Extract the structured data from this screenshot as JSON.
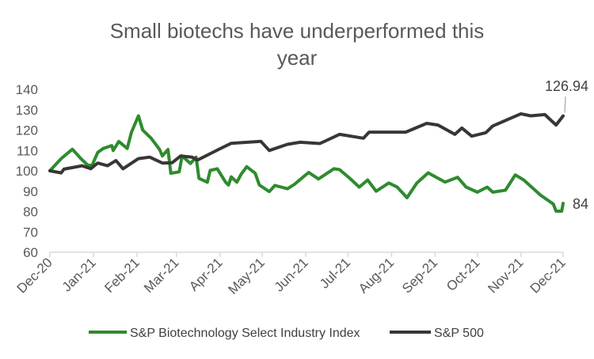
{
  "chart_data": {
    "type": "line",
    "title": [
      "Small biotechs have  underperformed this",
      "year"
    ],
    "xlabel": "",
    "ylabel": "",
    "ylim": [
      60,
      140
    ],
    "yticks": [
      60,
      70,
      80,
      90,
      100,
      110,
      120,
      130,
      140
    ],
    "xlim": [
      "2020-12-01",
      "2021-12-01"
    ],
    "xticks": [
      {
        "date": "2020-12-01",
        "label": "Dec-20"
      },
      {
        "date": "2021-01-01",
        "label": "Jan-21"
      },
      {
        "date": "2021-02-01",
        "label": "Feb-21"
      },
      {
        "date": "2021-03-01",
        "label": "Mar-21"
      },
      {
        "date": "2021-04-01",
        "label": "Apr-21"
      },
      {
        "date": "2021-05-01",
        "label": "May-21"
      },
      {
        "date": "2021-06-01",
        "label": "Jun-21"
      },
      {
        "date": "2021-07-01",
        "label": "Jul-21"
      },
      {
        "date": "2021-08-01",
        "label": "Aug-21"
      },
      {
        "date": "2021-09-01",
        "label": "Sep-21"
      },
      {
        "date": "2021-10-01",
        "label": "Oct-21"
      },
      {
        "date": "2021-11-01",
        "label": "Nov-21"
      },
      {
        "date": "2021-12-01",
        "label": "Dec-21"
      }
    ],
    "grid": false,
    "legend_position": "bottom",
    "series": [
      {
        "name": "S&P Biotechnology Select Industry Index",
        "color": "#2e8b2e",
        "end_label": "84",
        "points": [
          [
            "2020-12-01",
            100
          ],
          [
            "2020-12-09",
            106
          ],
          [
            "2020-12-17",
            110.6
          ],
          [
            "2020-12-23",
            106
          ],
          [
            "2020-12-28",
            102.7
          ],
          [
            "2020-12-31",
            102.7
          ],
          [
            "2021-01-04",
            109
          ],
          [
            "2021-01-08",
            111
          ],
          [
            "2021-01-14",
            112.4
          ],
          [
            "2021-01-15",
            110
          ],
          [
            "2021-01-19",
            114.4
          ],
          [
            "2021-01-25",
            111
          ],
          [
            "2021-01-28",
            119
          ],
          [
            "2021-02-02",
            127
          ],
          [
            "2021-02-05",
            120
          ],
          [
            "2021-02-11",
            116
          ],
          [
            "2021-02-17",
            110.5
          ],
          [
            "2021-02-19",
            107.3
          ],
          [
            "2021-02-23",
            110.5
          ],
          [
            "2021-02-25",
            98.8
          ],
          [
            "2021-03-03",
            99.5
          ],
          [
            "2021-03-05",
            107.3
          ],
          [
            "2021-03-11",
            103.6
          ],
          [
            "2021-03-15",
            106.7
          ],
          [
            "2021-03-17",
            96.3
          ],
          [
            "2021-03-23",
            94.4
          ],
          [
            "2021-03-25",
            100.2
          ],
          [
            "2021-03-30",
            101
          ],
          [
            "2021-04-05",
            94.4
          ],
          [
            "2021-04-07",
            93
          ],
          [
            "2021-04-09",
            97
          ],
          [
            "2021-04-13",
            94.4
          ],
          [
            "2021-04-16",
            98.3
          ],
          [
            "2021-04-20",
            102
          ],
          [
            "2021-04-26",
            98.8
          ],
          [
            "2021-04-29",
            93
          ],
          [
            "2021-05-06",
            89.8
          ],
          [
            "2021-05-10",
            92.8
          ],
          [
            "2021-05-19",
            91.2
          ],
          [
            "2021-05-24",
            93.4
          ],
          [
            "2021-06-03",
            99.2
          ],
          [
            "2021-06-10",
            96
          ],
          [
            "2021-06-21",
            101
          ],
          [
            "2021-06-25",
            100.6
          ],
          [
            "2021-07-02",
            96.5
          ],
          [
            "2021-07-09",
            92
          ],
          [
            "2021-07-15",
            95.5
          ],
          [
            "2021-07-21",
            90
          ],
          [
            "2021-07-30",
            94
          ],
          [
            "2021-08-05",
            92
          ],
          [
            "2021-08-12",
            86.8
          ],
          [
            "2021-08-19",
            94
          ],
          [
            "2021-08-27",
            99
          ],
          [
            "2021-09-08",
            94.5
          ],
          [
            "2021-09-17",
            96.8
          ],
          [
            "2021-09-23",
            92
          ],
          [
            "2021-10-01",
            89.5
          ],
          [
            "2021-10-08",
            92
          ],
          [
            "2021-10-12",
            89.5
          ],
          [
            "2021-10-21",
            90.5
          ],
          [
            "2021-10-28",
            98
          ],
          [
            "2021-11-03",
            95.5
          ],
          [
            "2021-11-15",
            88
          ],
          [
            "2021-11-24",
            83.7
          ],
          [
            "2021-11-26",
            80.2
          ],
          [
            "2021-11-30",
            80.2
          ],
          [
            "2021-12-01",
            84
          ]
        ]
      },
      {
        "name": "S&P 500",
        "color": "#3a3536",
        "end_label": "126.94",
        "points": [
          [
            "2020-12-01",
            100
          ],
          [
            "2020-12-09",
            99
          ],
          [
            "2020-12-11",
            100.8
          ],
          [
            "2020-12-24",
            102.5
          ],
          [
            "2020-12-30",
            101
          ],
          [
            "2021-01-04",
            103.8
          ],
          [
            "2021-01-11",
            102.5
          ],
          [
            "2021-01-17",
            105
          ],
          [
            "2021-01-22",
            101
          ],
          [
            "2021-02-02",
            106
          ],
          [
            "2021-02-10",
            106.7
          ],
          [
            "2021-02-19",
            103.8
          ],
          [
            "2021-02-26",
            104
          ],
          [
            "2021-03-04",
            107.3
          ],
          [
            "2021-03-12",
            106.7
          ],
          [
            "2021-03-16",
            105.3
          ],
          [
            "2021-03-31",
            110.5
          ],
          [
            "2021-04-09",
            113.5
          ],
          [
            "2021-04-30",
            114.5
          ],
          [
            "2021-05-06",
            110
          ],
          [
            "2021-05-19",
            113
          ],
          [
            "2021-05-28",
            114
          ],
          [
            "2021-06-11",
            113.4
          ],
          [
            "2021-06-25",
            117.9
          ],
          [
            "2021-07-12",
            116
          ],
          [
            "2021-07-16",
            119
          ],
          [
            "2021-08-11",
            119
          ],
          [
            "2021-08-26",
            123.3
          ],
          [
            "2021-09-03",
            122.5
          ],
          [
            "2021-09-15",
            117.9
          ],
          [
            "2021-09-20",
            121
          ],
          [
            "2021-09-27",
            117
          ],
          [
            "2021-10-07",
            118.7
          ],
          [
            "2021-10-12",
            122
          ],
          [
            "2021-10-22",
            125
          ],
          [
            "2021-11-01",
            128
          ],
          [
            "2021-11-08",
            127
          ],
          [
            "2021-11-18",
            127.6
          ],
          [
            "2021-11-26",
            122.5
          ],
          [
            "2021-12-01",
            126.94
          ]
        ]
      }
    ]
  }
}
